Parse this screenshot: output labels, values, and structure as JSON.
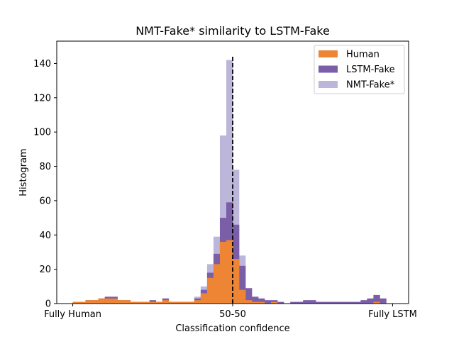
{
  "chart_data": {
    "type": "bar",
    "title": "NMT-Fake* similarity to LSTM-Fake",
    "xlabel": "Classification confidence",
    "ylabel": "Histogram",
    "xlim": [
      -0.05,
      1.05
    ],
    "ylim": [
      0,
      153
    ],
    "bin_width": 0.02,
    "x_ticks": [
      {
        "value": 0.0,
        "label": "Fully Human"
      },
      {
        "value": 0.5,
        "label": "50-50"
      },
      {
        "value": 1.0,
        "label": "Fully LSTM"
      }
    ],
    "y_ticks": [
      0,
      20,
      40,
      60,
      80,
      100,
      120,
      140
    ],
    "reference_line": {
      "x": 0.5,
      "style": "dashed",
      "color": "#000000"
    },
    "legend": {
      "position": "top-right"
    },
    "bin_starts": [
      0.0,
      0.02,
      0.04,
      0.06,
      0.08,
      0.1,
      0.12,
      0.14,
      0.16,
      0.18,
      0.2,
      0.22,
      0.24,
      0.26,
      0.28,
      0.3,
      0.32,
      0.34,
      0.36,
      0.38,
      0.4,
      0.42,
      0.44,
      0.46,
      0.48,
      0.5,
      0.52,
      0.54,
      0.56,
      0.58,
      0.6,
      0.62,
      0.64,
      0.66,
      0.68,
      0.7,
      0.72,
      0.74,
      0.76,
      0.78,
      0.8,
      0.82,
      0.84,
      0.86,
      0.88,
      0.9,
      0.92,
      0.94,
      0.96
    ],
    "series": [
      {
        "name": "NMT-Fake*",
        "color": "#bcb6da",
        "values": [
          0,
          0,
          0,
          0,
          0,
          0,
          0,
          0,
          0,
          0,
          0,
          0,
          0,
          0,
          0,
          0,
          0,
          0,
          1,
          4,
          10,
          23,
          39,
          98,
          142,
          78,
          28,
          3,
          1,
          1,
          0,
          0,
          0,
          0,
          0,
          0,
          0,
          0,
          0,
          0,
          0,
          0,
          0,
          0,
          0,
          0,
          0,
          0,
          0
        ]
      },
      {
        "name": "LSTM-Fake",
        "color": "#7b5ea8",
        "values": [
          1,
          1,
          2,
          2,
          3,
          4,
          4,
          2,
          2,
          1,
          1,
          1,
          2,
          1,
          3,
          1,
          1,
          1,
          1,
          3,
          8,
          18,
          29,
          50,
          59,
          46,
          22,
          9,
          4,
          3,
          2,
          2,
          1,
          0,
          1,
          1,
          2,
          2,
          1,
          1,
          1,
          1,
          1,
          1,
          1,
          2,
          3,
          5,
          3
        ]
      },
      {
        "name": "Human",
        "color": "#ee8535",
        "values": [
          1,
          1,
          2,
          2,
          3,
          3,
          3,
          2,
          2,
          1,
          1,
          1,
          1,
          1,
          2,
          1,
          1,
          1,
          1,
          2,
          6,
          15,
          23,
          36,
          37,
          26,
          8,
          2,
          1,
          1,
          0,
          1,
          0,
          0,
          0,
          0,
          0,
          0,
          0,
          0,
          0,
          0,
          0,
          0,
          0,
          0,
          0,
          1,
          0
        ]
      }
    ],
    "legend_order": [
      "Human",
      "LSTM-Fake",
      "NMT-Fake*"
    ]
  }
}
